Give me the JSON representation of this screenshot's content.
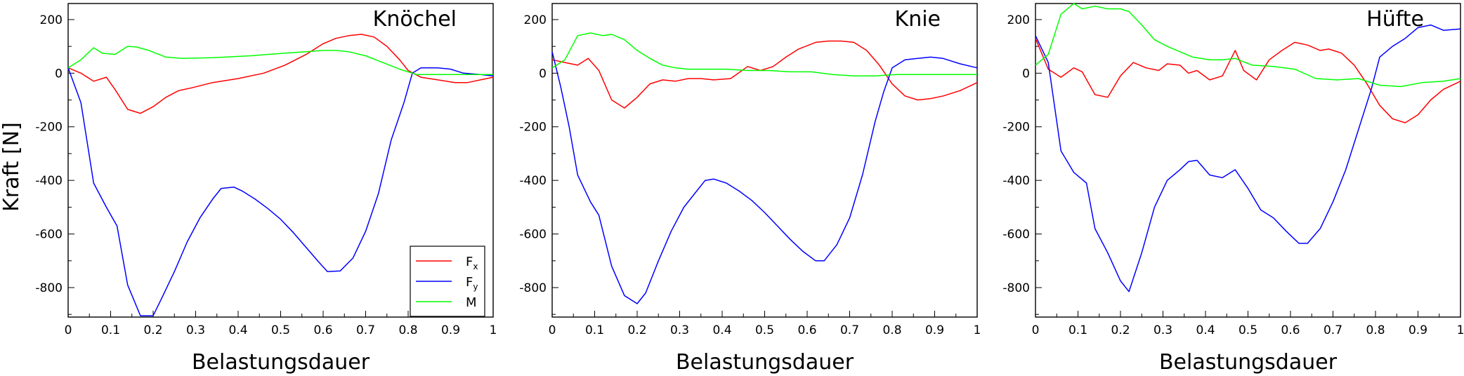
{
  "figure": {
    "ylabel": "Kraft [N]",
    "legend": {
      "entries": [
        {
          "main": "F",
          "sub": "x",
          "color": "#ff0000"
        },
        {
          "main": "F",
          "sub": "y",
          "color": "#0000ff"
        },
        {
          "main": "M",
          "sub": "",
          "color": "#00ff00"
        }
      ]
    }
  },
  "chart_data": [
    {
      "type": "line",
      "title": "Knöchel",
      "xlabel": "Belastungsdauer",
      "ylabel": "Kraft [N]",
      "xlim": [
        0,
        1
      ],
      "ylim": [
        -910,
        260
      ],
      "xticks": [
        "0",
        "0.1",
        "0.2",
        "0.3",
        "0.4",
        "0.5",
        "0.6",
        "0.7",
        "0.8",
        "0.9",
        "1"
      ],
      "yticks": [
        "200",
        "0",
        "-200",
        "-400",
        "-600",
        "-800"
      ],
      "grid": false,
      "legend": "bottom-right",
      "series": [
        {
          "name": "Fx",
          "color": "#ff0000",
          "x": [
            0,
            0.03,
            0.06,
            0.09,
            0.11,
            0.14,
            0.17,
            0.2,
            0.23,
            0.26,
            0.29,
            0.34,
            0.4,
            0.46,
            0.51,
            0.56,
            0.6,
            0.63,
            0.66,
            0.69,
            0.72,
            0.75,
            0.78,
            0.8,
            0.83,
            0.87,
            0.91,
            0.94,
            0.97,
            1
          ],
          "y": [
            20,
            0,
            -30,
            -15,
            -60,
            -135,
            -150,
            -125,
            -90,
            -65,
            -55,
            -35,
            -20,
            0,
            30,
            70,
            110,
            130,
            140,
            145,
            135,
            100,
            50,
            10,
            -15,
            -25,
            -35,
            -35,
            -25,
            -15
          ]
        },
        {
          "name": "Fy",
          "color": "#0000ff",
          "x": [
            0,
            0.03,
            0.06,
            0.09,
            0.115,
            0.14,
            0.17,
            0.2,
            0.22,
            0.25,
            0.28,
            0.31,
            0.34,
            0.36,
            0.39,
            0.41,
            0.44,
            0.47,
            0.5,
            0.53,
            0.56,
            0.59,
            0.61,
            0.64,
            0.67,
            0.7,
            0.73,
            0.76,
            0.79,
            0.81,
            0.83,
            0.87,
            0.9,
            0.93,
            0.97,
            1
          ],
          "y": [
            20,
            -110,
            -410,
            -500,
            -570,
            -790,
            -905,
            -905,
            -840,
            -740,
            -630,
            -540,
            -470,
            -430,
            -425,
            -440,
            -470,
            -505,
            -545,
            -595,
            -650,
            -705,
            -740,
            -738,
            -690,
            -590,
            -450,
            -250,
            -110,
            0,
            20,
            20,
            15,
            0,
            -5,
            -10
          ]
        },
        {
          "name": "M",
          "color": "#00ff00",
          "x": [
            0,
            0.03,
            0.06,
            0.08,
            0.11,
            0.14,
            0.16,
            0.19,
            0.23,
            0.27,
            0.34,
            0.43,
            0.51,
            0.56,
            0.6,
            0.63,
            0.66,
            0.7,
            0.74,
            0.78,
            0.82,
            0.9,
            1
          ],
          "y": [
            20,
            50,
            95,
            75,
            70,
            100,
            98,
            85,
            60,
            55,
            58,
            65,
            75,
            80,
            85,
            85,
            80,
            65,
            40,
            15,
            -5,
            -5,
            -5
          ]
        }
      ]
    },
    {
      "type": "line",
      "title": "Knie",
      "xlabel": "Belastungsdauer",
      "ylabel": "",
      "xlim": [
        0,
        1
      ],
      "ylim": [
        -910,
        260
      ],
      "xticks": [
        "0",
        "0.1",
        "0.2",
        "0.3",
        "0.4",
        "0.5",
        "0.6",
        "0.7",
        "0.8",
        "0.9",
        "1"
      ],
      "yticks": [
        "200",
        "0",
        "-200",
        "-400",
        "-600",
        "-800"
      ],
      "grid": false,
      "series": [
        {
          "name": "Fx",
          "color": "#ff0000",
          "x": [
            0,
            0.03,
            0.06,
            0.085,
            0.11,
            0.14,
            0.17,
            0.2,
            0.23,
            0.26,
            0.29,
            0.32,
            0.35,
            0.38,
            0.42,
            0.46,
            0.49,
            0.52,
            0.55,
            0.58,
            0.62,
            0.65,
            0.68,
            0.71,
            0.74,
            0.77,
            0.8,
            0.83,
            0.86,
            0.89,
            0.92,
            0.96,
            1
          ],
          "y": [
            50,
            40,
            30,
            55,
            10,
            -100,
            -130,
            -90,
            -40,
            -25,
            -30,
            -20,
            -20,
            -25,
            -20,
            25,
            10,
            25,
            60,
            90,
            115,
            120,
            120,
            115,
            85,
            30,
            -40,
            -85,
            -100,
            -95,
            -85,
            -65,
            -35
          ]
        },
        {
          "name": "Fy",
          "color": "#0000ff",
          "x": [
            0,
            0.02,
            0.04,
            0.06,
            0.09,
            0.11,
            0.14,
            0.17,
            0.2,
            0.22,
            0.25,
            0.28,
            0.31,
            0.34,
            0.36,
            0.38,
            0.41,
            0.44,
            0.47,
            0.5,
            0.53,
            0.56,
            0.59,
            0.62,
            0.64,
            0.67,
            0.7,
            0.73,
            0.76,
            0.78,
            0.8,
            0.83,
            0.86,
            0.89,
            0.92,
            0.96,
            1
          ],
          "y": [
            80,
            -50,
            -200,
            -380,
            -480,
            -530,
            -720,
            -830,
            -860,
            -820,
            -700,
            -590,
            -500,
            -440,
            -400,
            -395,
            -410,
            -440,
            -475,
            -520,
            -570,
            -620,
            -665,
            -700,
            -700,
            -640,
            -540,
            -380,
            -180,
            -70,
            20,
            50,
            55,
            60,
            55,
            35,
            20
          ]
        },
        {
          "name": "M",
          "color": "#00ff00",
          "x": [
            0,
            0.03,
            0.06,
            0.09,
            0.12,
            0.14,
            0.17,
            0.2,
            0.23,
            0.26,
            0.29,
            0.32,
            0.36,
            0.41,
            0.46,
            0.51,
            0.56,
            0.61,
            0.66,
            0.71,
            0.76,
            0.81,
            0.86,
            0.91,
            1
          ],
          "y": [
            20,
            50,
            140,
            150,
            140,
            145,
            125,
            85,
            55,
            30,
            20,
            15,
            15,
            15,
            10,
            10,
            5,
            5,
            -5,
            -10,
            -10,
            -5,
            -5,
            -5,
            -5
          ]
        }
      ]
    },
    {
      "type": "line",
      "title": "Hüfte",
      "xlabel": "Belastungsdauer",
      "ylabel": "",
      "xlim": [
        0,
        1
      ],
      "ylim": [
        -910,
        260
      ],
      "xticks": [
        "0",
        "0.1",
        "0.2",
        "0.3",
        "0.4",
        "0.5",
        "0.6",
        "0.7",
        "0.8",
        "0.9",
        "1"
      ],
      "yticks": [
        "200",
        "0",
        "-200",
        "-400",
        "-600",
        "-800"
      ],
      "grid": false,
      "series": [
        {
          "name": "Fx",
          "color": "#ff0000",
          "x": [
            0,
            0.03,
            0.06,
            0.09,
            0.11,
            0.14,
            0.17,
            0.2,
            0.23,
            0.26,
            0.29,
            0.31,
            0.34,
            0.36,
            0.38,
            0.41,
            0.44,
            0.47,
            0.49,
            0.52,
            0.55,
            0.58,
            0.61,
            0.64,
            0.67,
            0.69,
            0.72,
            0.75,
            0.78,
            0.81,
            0.84,
            0.87,
            0.9,
            0.93,
            0.96,
            1
          ],
          "y": [
            130,
            15,
            -15,
            20,
            5,
            -80,
            -90,
            -10,
            40,
            20,
            10,
            35,
            30,
            0,
            10,
            -25,
            -10,
            85,
            10,
            -25,
            50,
            85,
            115,
            105,
            85,
            90,
            75,
            30,
            -40,
            -120,
            -170,
            -185,
            -155,
            -100,
            -60,
            -30
          ]
        },
        {
          "name": "Fy",
          "color": "#0000ff",
          "x": [
            0,
            0.03,
            0.06,
            0.09,
            0.12,
            0.14,
            0.17,
            0.2,
            0.22,
            0.25,
            0.28,
            0.31,
            0.34,
            0.36,
            0.38,
            0.41,
            0.44,
            0.47,
            0.5,
            0.53,
            0.56,
            0.59,
            0.62,
            0.64,
            0.67,
            0.7,
            0.73,
            0.76,
            0.79,
            0.81,
            0.84,
            0.87,
            0.9,
            0.93,
            0.96,
            1
          ],
          "y": [
            140,
            40,
            -290,
            -370,
            -410,
            -580,
            -670,
            -775,
            -815,
            -670,
            -500,
            -400,
            -360,
            -330,
            -325,
            -380,
            -390,
            -360,
            -430,
            -510,
            -540,
            -590,
            -635,
            -635,
            -580,
            -480,
            -360,
            -210,
            -60,
            60,
            100,
            130,
            170,
            180,
            160,
            165
          ]
        },
        {
          "name": "M",
          "color": "#00ff00",
          "x": [
            0,
            0.03,
            0.06,
            0.09,
            0.11,
            0.14,
            0.17,
            0.2,
            0.22,
            0.25,
            0.28,
            0.31,
            0.34,
            0.37,
            0.41,
            0.44,
            0.47,
            0.51,
            0.56,
            0.61,
            0.66,
            0.71,
            0.76,
            0.81,
            0.86,
            0.91,
            0.96,
            1
          ],
          "y": [
            30,
            70,
            220,
            260,
            240,
            250,
            240,
            240,
            230,
            180,
            125,
            100,
            80,
            60,
            50,
            50,
            55,
            30,
            25,
            15,
            -20,
            -25,
            -20,
            -45,
            -50,
            -35,
            -30,
            -20
          ]
        }
      ]
    }
  ]
}
